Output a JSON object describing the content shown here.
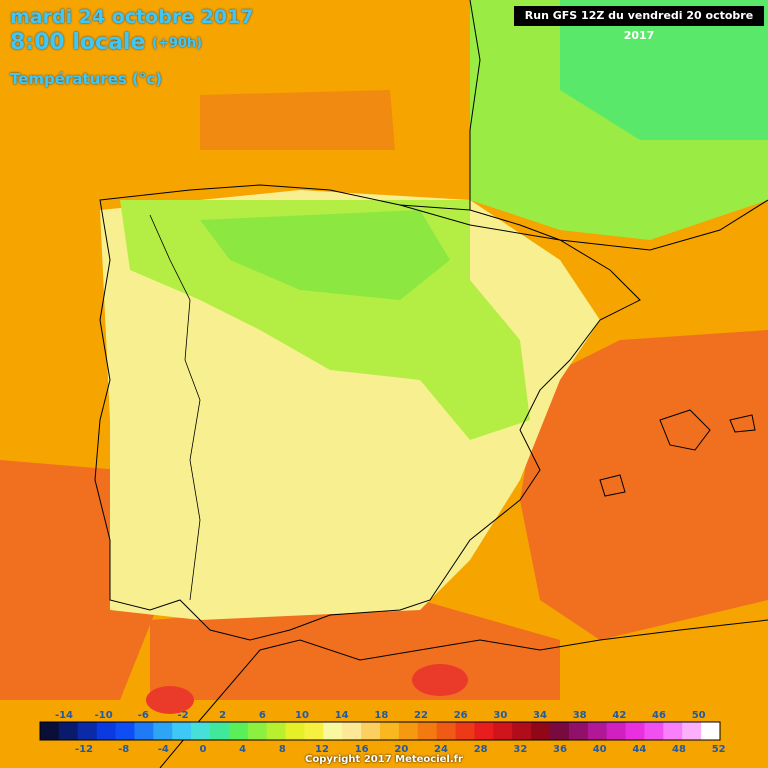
{
  "header": {
    "date": "mardi 24 octobre 2017",
    "time": "8:00 locale",
    "offset": "(+90h)",
    "parameter": "Températures (°c)"
  },
  "run_info": "Run GFS 12Z du vendredi 20 octobre 2017",
  "copyright": "Copyright 2017 Meteociel.fr",
  "legend": {
    "top_labels": [
      "-14",
      "-10",
      "-6",
      "-2",
      "2",
      "6",
      "10",
      "14",
      "18",
      "22",
      "26",
      "30",
      "34",
      "38",
      "42",
      "46",
      "50"
    ],
    "bottom_labels": [
      "-12",
      "-8",
      "-4",
      "0",
      "4",
      "8",
      "12",
      "16",
      "20",
      "24",
      "28",
      "32",
      "36",
      "40",
      "44",
      "48",
      "52"
    ],
    "colors": [
      "#0a0f3a",
      "#0a1b6e",
      "#0a2aa8",
      "#0a3ae0",
      "#0f4ef5",
      "#1e7af5",
      "#2ea4f5",
      "#3ec8f5",
      "#46e0d8",
      "#3fe89a",
      "#5aee5a",
      "#8cf040",
      "#b8f030",
      "#e6f028",
      "#f6f040",
      "#f8f8a0",
      "#fde898",
      "#fcd060",
      "#f9b820",
      "#f59a10",
      "#f27a10",
      "#ef5a14",
      "#ec3a18",
      "#e81e1e",
      "#d0141c",
      "#b00c1a",
      "#900818",
      "#780a40",
      "#90106a",
      "#b01898",
      "#d020c0",
      "#e830e0",
      "#f050f0",
      "#f880f8",
      "#fcb0fc",
      "#ffffff"
    ]
  },
  "icons": {
    "map": "temperature-map"
  }
}
